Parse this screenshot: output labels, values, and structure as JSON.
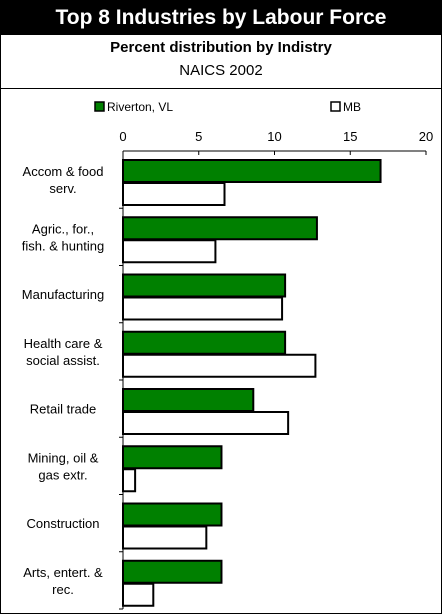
{
  "header": {
    "title": "Top 8 Industries by Labour Force",
    "subtitle": "Percent distribution by Indistry",
    "subtitle2": "NAICS 2002"
  },
  "colors": {
    "series1": "#008000",
    "series2": "#ffffff",
    "outline": "#000000"
  },
  "chart_data": {
    "type": "bar",
    "orientation": "horizontal",
    "title": "Top 8 Industries by Labour Force",
    "subtitle": "Percent distribution by Indistry",
    "xlim": [
      0,
      20
    ],
    "xticks": [
      0,
      5,
      10,
      15,
      20
    ],
    "legend_position": "top",
    "categories": [
      [
        "Accom & food",
        "serv."
      ],
      [
        "Agric., for.,",
        "fish. & hunting"
      ],
      [
        "Manufacturing"
      ],
      [
        "Health care &",
        "social assist."
      ],
      [
        "Retail trade"
      ],
      [
        "Mining, oil &",
        "gas extr."
      ],
      [
        "Construction"
      ],
      [
        "Arts, entert. &",
        "rec."
      ]
    ],
    "series": [
      {
        "name": "Riverton, VL",
        "values": [
          17.0,
          12.8,
          10.7,
          10.7,
          8.6,
          6.5,
          6.5,
          6.5
        ]
      },
      {
        "name": "MB",
        "values": [
          6.7,
          6.1,
          10.5,
          12.7,
          10.9,
          0.8,
          5.5,
          2.0
        ]
      }
    ]
  }
}
